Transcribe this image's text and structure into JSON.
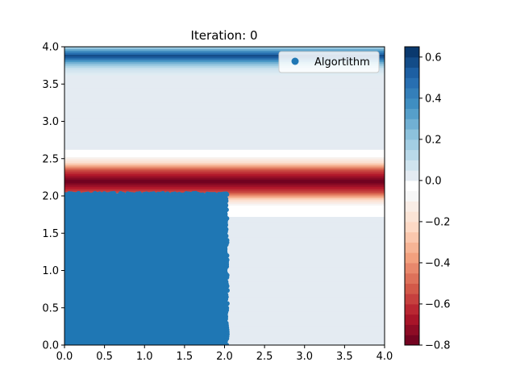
{
  "chart_data": {
    "type": "heatmap",
    "title": "Iteration: 0",
    "xlim": [
      0.0,
      4.0
    ],
    "ylim": [
      0.0,
      4.0
    ],
    "x_ticks": [
      "0.0",
      "0.5",
      "1.0",
      "1.5",
      "2.0",
      "2.5",
      "3.0",
      "3.5",
      "4.0"
    ],
    "y_ticks": [
      "0.0",
      "0.5",
      "1.0",
      "1.5",
      "2.0",
      "2.5",
      "3.0",
      "3.5",
      "4.0"
    ],
    "heatmap": {
      "colormap": "RdBu",
      "variation": "along y only",
      "value_profile": [
        {
          "y": 0.0,
          "value": 0.0
        },
        {
          "y": 1.72,
          "value": 0.0
        },
        {
          "y": 1.73,
          "value": -0.02
        },
        {
          "y": 1.87,
          "value": -0.05
        },
        {
          "y": 1.95,
          "value": -0.2
        },
        {
          "y": 2.05,
          "value": -0.55
        },
        {
          "y": 2.2,
          "value": -0.8
        },
        {
          "y": 2.35,
          "value": -0.55
        },
        {
          "y": 2.45,
          "value": -0.2
        },
        {
          "y": 2.55,
          "value": -0.05
        },
        {
          "y": 2.62,
          "value": -0.02
        },
        {
          "y": 2.63,
          "value": 0.0
        },
        {
          "y": 3.62,
          "value": 0.0
        },
        {
          "y": 3.72,
          "value": 0.1
        },
        {
          "y": 3.8,
          "value": 0.3
        },
        {
          "y": 3.88,
          "value": 0.6
        },
        {
          "y": 3.95,
          "value": 0.35
        },
        {
          "y": 4.0,
          "value": 0.15
        }
      ]
    },
    "scatter": {
      "name": "Algortithm",
      "color": "#1f77b4",
      "region": {
        "x": [
          0.0,
          2.02
        ],
        "y": [
          0.0,
          2.02
        ]
      },
      "description_region": "dense uniform cloud"
    },
    "legend": {
      "entries": [
        "Algortithm"
      ],
      "placement": "top-right"
    },
    "colorbar": {
      "range": [
        -0.8,
        0.65
      ],
      "ticks": [
        "0.6",
        "0.4",
        "0.2",
        "0.0",
        "−0.2",
        "−0.4",
        "−0.6",
        "−0.8"
      ],
      "tick_values": [
        0.6,
        0.4,
        0.2,
        0.0,
        -0.2,
        -0.4,
        -0.6,
        -0.8
      ]
    },
    "grid": false
  }
}
